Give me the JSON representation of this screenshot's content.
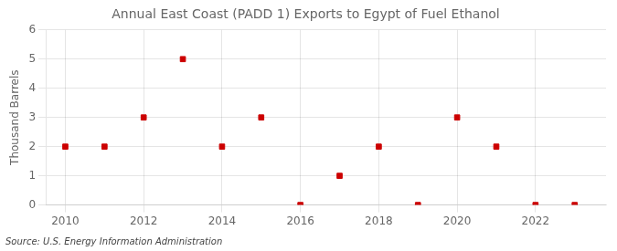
{
  "chart_data": {
    "type": "scatter",
    "title": "Annual East Coast (PADD 1) Exports to Egypt of Fuel Ethanol",
    "ylabel": "Thousand Barrels",
    "source": "Source: U.S. Energy Information Administration",
    "x": [
      2010,
      2011,
      2012,
      2013,
      2014,
      2015,
      2016,
      2017,
      2018,
      2019,
      2020,
      2021,
      2022,
      2023
    ],
    "values": [
      2,
      2,
      3,
      5,
      2,
      3,
      0,
      1,
      2,
      0,
      3,
      2,
      0,
      0
    ],
    "color": "#cc0000",
    "marker": "square",
    "xlim": [
      2009.5,
      2023.8
    ],
    "ylim": [
      0,
      6
    ],
    "xticks": [
      2010,
      2012,
      2014,
      2016,
      2018,
      2020,
      2022
    ],
    "yticks": [
      0,
      1,
      2,
      3,
      4,
      5,
      6
    ],
    "grid": true
  }
}
